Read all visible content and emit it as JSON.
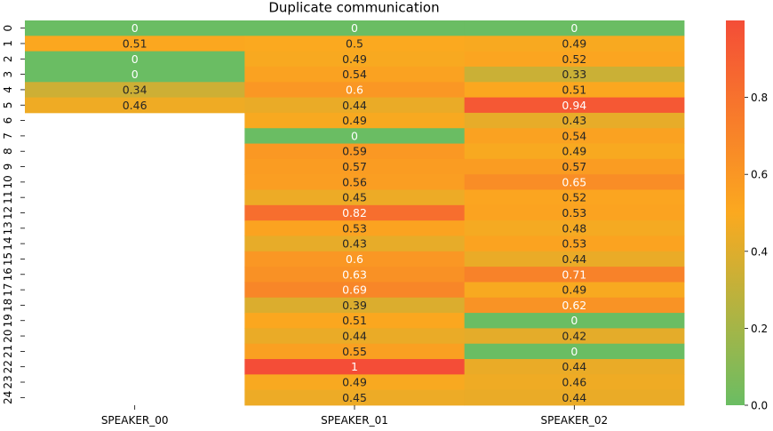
{
  "chart_data": {
    "type": "heatmap",
    "title": "Duplicate communication",
    "columns": [
      "SPEAKER_00",
      "SPEAKER_01",
      "SPEAKER_02"
    ],
    "rows": [
      "0",
      "1",
      "2",
      "3",
      "4",
      "5",
      "6",
      "7",
      "8",
      "9",
      "10",
      "11",
      "12",
      "13",
      "14",
      "15",
      "16",
      "17",
      "18",
      "19",
      "20",
      "21",
      "22",
      "23",
      "24"
    ],
    "values": [
      [
        0,
        0,
        0
      ],
      [
        0.51,
        0.5,
        0.49
      ],
      [
        0,
        0.49,
        0.52
      ],
      [
        0,
        0.54,
        0.33
      ],
      [
        0.34,
        0.6,
        0.51
      ],
      [
        0.46,
        0.44,
        0.94
      ],
      [
        null,
        0.49,
        0.43
      ],
      [
        null,
        0,
        0.54
      ],
      [
        null,
        0.59,
        0.49
      ],
      [
        null,
        0.57,
        0.57
      ],
      [
        null,
        0.56,
        0.65
      ],
      [
        null,
        0.45,
        0.52
      ],
      [
        null,
        0.82,
        0.53
      ],
      [
        null,
        0.53,
        0.48
      ],
      [
        null,
        0.43,
        0.53
      ],
      [
        null,
        0.6,
        0.44
      ],
      [
        null,
        0.63,
        0.71
      ],
      [
        null,
        0.69,
        0.49
      ],
      [
        null,
        0.39,
        0.62
      ],
      [
        null,
        0.51,
        0
      ],
      [
        null,
        0.44,
        0.42
      ],
      [
        null,
        0.55,
        0
      ],
      [
        null,
        1,
        0.44
      ],
      [
        null,
        0.49,
        0.46
      ],
      [
        null,
        0.45,
        0.44
      ]
    ],
    "colorbar": {
      "min": 0.0,
      "max": 1.0,
      "ticks": [
        0.0,
        0.2,
        0.4,
        0.6,
        0.8
      ],
      "tick_labels": [
        "0.0",
        "0.2",
        "0.4",
        "0.6",
        "0.8"
      ],
      "colors": [
        "#6abd63",
        "#fba91f",
        "#f44d37"
      ]
    },
    "label_colors": {
      "light": "#ffffff",
      "dark": "#262626"
    }
  }
}
